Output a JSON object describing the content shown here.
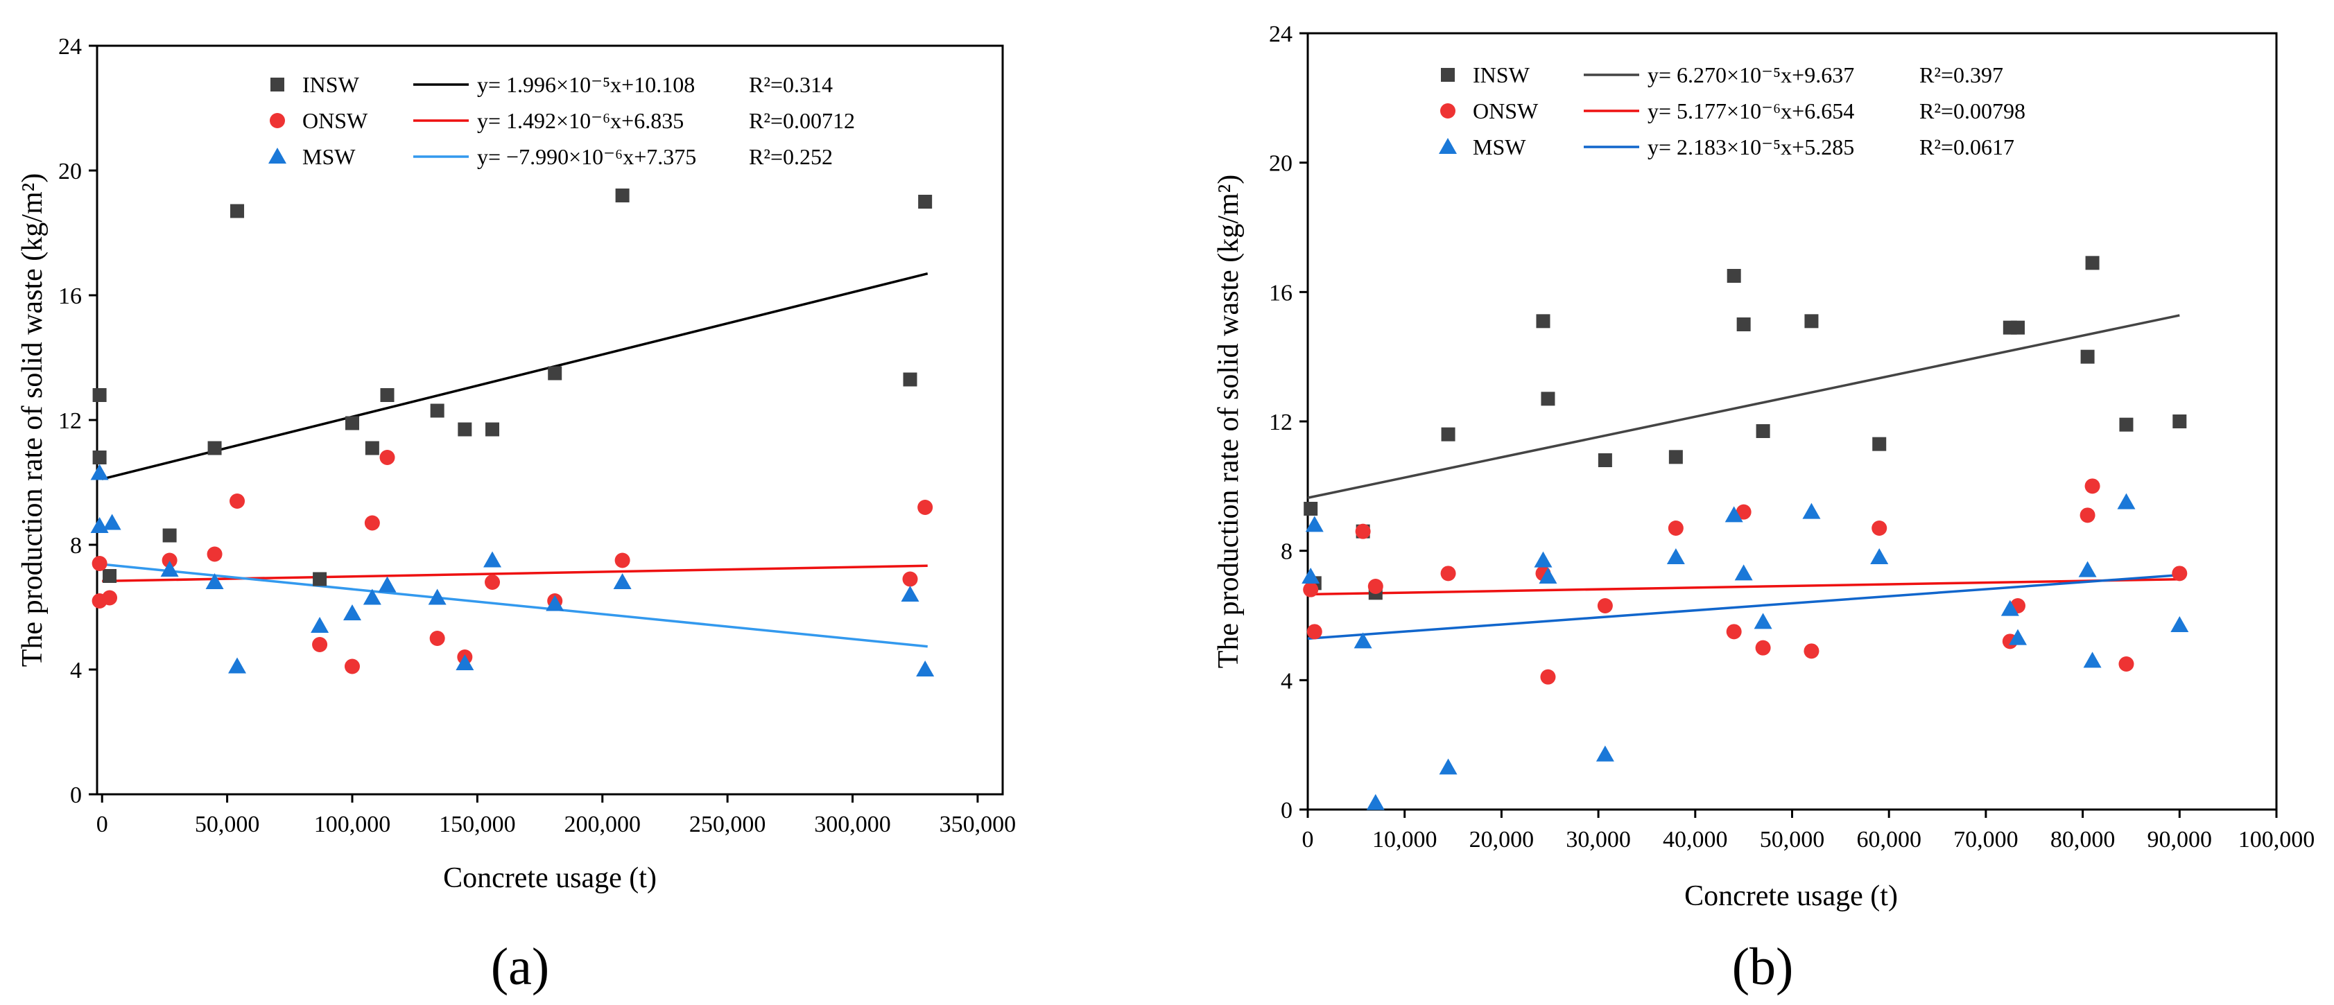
{
  "chart_data": [
    {
      "type": "scatter",
      "panel_label": "(a)",
      "title": "",
      "xlabel": "Concrete usage (t)",
      "ylabel": "The production rate of solid waste (kg/m²)",
      "xlim": [
        -2000,
        360000
      ],
      "ylim": [
        0,
        24
      ],
      "xticks": [
        0,
        50000,
        100000,
        150000,
        200000,
        250000,
        300000,
        350000
      ],
      "xtick_labels": [
        "0",
        "50,000",
        "100,000",
        "150,000",
        "200,000",
        "250,000",
        "300,000",
        "350,000"
      ],
      "yticks": [
        0,
        4,
        8,
        12,
        16,
        20,
        24
      ],
      "ytick_labels": [
        "0",
        "4",
        "8",
        "12",
        "16",
        "20",
        "24"
      ],
      "legend_position": "top-center",
      "series": [
        {
          "name": "INSW",
          "marker": "square",
          "color": "#404040",
          "equation": "y= 1.996×10⁻⁵x+10.108",
          "r2": "R²=0.314",
          "fit": {
            "slope": 1.996e-05,
            "intercept": 10.108,
            "x_range": [
              0,
              330000
            ],
            "color": "#000000"
          },
          "x": [
            -1000,
            -1000,
            3000,
            27000,
            45000,
            54000,
            87000,
            100000,
            108000,
            114000,
            134000,
            145000,
            156000,
            181000,
            208000,
            323000,
            329000
          ],
          "y": [
            12.8,
            10.8,
            7.0,
            8.3,
            11.1,
            18.7,
            6.9,
            11.9,
            11.1,
            12.8,
            12.3,
            11.7,
            11.7,
            13.5,
            19.2,
            13.3,
            19.0
          ]
        },
        {
          "name": "ONSW",
          "marker": "circle",
          "color": "#ee3333",
          "equation": "y= 1.492×10⁻⁶x+6.835",
          "r2": "R²=0.00712",
          "fit": {
            "slope": 1.492e-06,
            "intercept": 6.835,
            "x_range": [
              0,
              330000
            ],
            "color": "#ee1111"
          },
          "x": [
            -1000,
            -1000,
            3000,
            27000,
            45000,
            54000,
            87000,
            100000,
            108000,
            114000,
            134000,
            145000,
            156000,
            181000,
            208000,
            323000,
            329000
          ],
          "y": [
            7.4,
            6.2,
            6.3,
            7.5,
            7.7,
            9.4,
            4.8,
            4.1,
            8.7,
            10.8,
            5.0,
            4.4,
            6.8,
            6.2,
            7.5,
            6.9,
            9.2
          ]
        },
        {
          "name": "MSW",
          "marker": "triangle",
          "color": "#1a78d8",
          "equation": "y= −7.990×10⁻⁶x+7.375",
          "r2": "R²=0.252",
          "fit": {
            "slope": -7.99e-06,
            "intercept": 7.375,
            "x_range": [
              0,
              330000
            ],
            "color": "#3399ee"
          },
          "x": [
            -1000,
            -1000,
            4000,
            27000,
            45000,
            54000,
            87000,
            100000,
            108000,
            114000,
            134000,
            145000,
            156000,
            181000,
            208000,
            323000,
            329000
          ],
          "y": [
            10.3,
            8.6,
            8.7,
            7.2,
            6.8,
            4.1,
            5.4,
            5.8,
            6.3,
            6.7,
            6.3,
            4.2,
            7.5,
            6.1,
            6.8,
            6.4,
            4.0
          ]
        }
      ]
    },
    {
      "type": "scatter",
      "panel_label": "(b)",
      "title": "",
      "xlabel": "Concrete usage (t)",
      "ylabel": "The production rate of solid waste (kg/m²)",
      "xlim": [
        0,
        100000
      ],
      "ylim": [
        0,
        24
      ],
      "xticks": [
        0,
        10000,
        20000,
        30000,
        40000,
        50000,
        60000,
        70000,
        80000,
        90000,
        100000
      ],
      "xtick_labels": [
        "0",
        "10,000",
        "20,000",
        "30,000",
        "40,000",
        "50,000",
        "60,000",
        "70,000",
        "80,000",
        "90,000",
        "100,000"
      ],
      "yticks": [
        0,
        4,
        8,
        12,
        16,
        20,
        24
      ],
      "ytick_labels": [
        "0",
        "4",
        "8",
        "12",
        "16",
        "20",
        "24"
      ],
      "legend_position": "top-center",
      "series": [
        {
          "name": "INSW",
          "marker": "square",
          "color": "#404040",
          "equation": "y= 6.270×10⁻⁵x+9.637",
          "r2": "R²=0.397",
          "fit": {
            "slope": 6.27e-05,
            "intercept": 9.637,
            "x_range": [
              0,
              90000
            ],
            "color": "#444444"
          },
          "x": [
            300,
            700,
            5700,
            7000,
            14500,
            24300,
            24800,
            30700,
            38000,
            44000,
            45000,
            47000,
            52000,
            59000,
            72500,
            73300,
            80500,
            81000,
            84500,
            90000
          ],
          "y": [
            9.3,
            7.0,
            8.6,
            6.7,
            11.6,
            15.1,
            12.7,
            10.8,
            10.9,
            16.5,
            15.0,
            11.7,
            15.1,
            11.3,
            14.9,
            14.9,
            14.0,
            16.9,
            11.9,
            12.0
          ]
        },
        {
          "name": "ONSW",
          "marker": "circle",
          "color": "#ee3333",
          "equation": "y= 5.177×10⁻⁶x+6.654",
          "r2": "R²=0.00798",
          "fit": {
            "slope": 5.177e-06,
            "intercept": 6.654,
            "x_range": [
              0,
              90000
            ],
            "color": "#ee1111"
          },
          "x": [
            300,
            700,
            5700,
            7000,
            14500,
            24300,
            24800,
            30700,
            38000,
            44000,
            45000,
            47000,
            52000,
            59000,
            72500,
            73300,
            80500,
            81000,
            84500,
            90000
          ],
          "y": [
            6.8,
            5.5,
            8.6,
            6.9,
            7.3,
            7.3,
            4.1,
            6.3,
            8.7,
            5.5,
            9.2,
            5.0,
            4.9,
            8.7,
            5.2,
            6.3,
            9.1,
            10.0,
            4.5,
            7.3
          ]
        },
        {
          "name": "MSW",
          "marker": "triangle",
          "color": "#1a78d8",
          "equation": "y= 2.183×10⁻⁵x+5.285",
          "r2": "R²=0.0617",
          "fit": {
            "slope": 2.183e-05,
            "intercept": 5.285,
            "x_range": [
              0,
              90000
            ],
            "color": "#1166cc"
          },
          "x": [
            300,
            700,
            5700,
            7000,
            14500,
            24300,
            24800,
            30700,
            38000,
            44000,
            45000,
            47000,
            52000,
            59000,
            72500,
            73300,
            80500,
            81000,
            84500,
            90000
          ],
          "y": [
            7.2,
            8.8,
            5.2,
            0.2,
            1.3,
            7.7,
            7.2,
            1.7,
            7.8,
            9.1,
            7.3,
            5.8,
            9.2,
            7.8,
            6.2,
            5.3,
            7.4,
            4.6,
            9.5,
            5.7
          ]
        }
      ]
    }
  ]
}
